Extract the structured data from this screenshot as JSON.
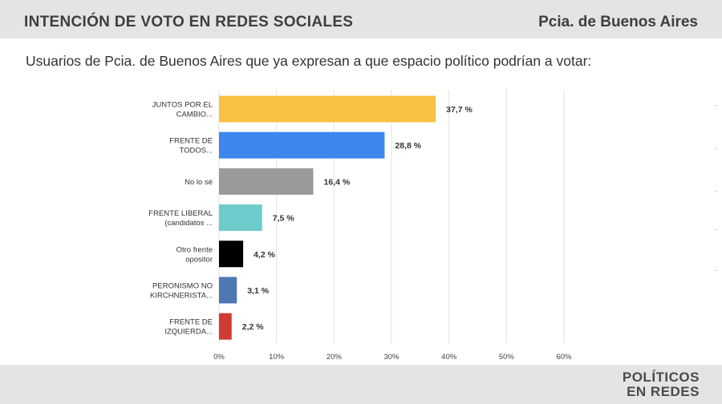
{
  "header": {
    "title": "INTENCIÓN DE VOTO EN REDES SOCIALES",
    "region": "Pcia. de Buenos Aires"
  },
  "subtitle": "Usuarios de Pcia. de Buenos Aires que ya expresan a que espacio político podrían a votar:",
  "logo": {
    "line1": "POLÍTICOS",
    "line2": "EN REDES"
  },
  "chart_data": {
    "type": "bar",
    "orientation": "horizontal",
    "categories": [
      [
        "JUNTOS POR EL",
        "CAMBIO..."
      ],
      [
        "FRENTE DE",
        "TODOS..."
      ],
      [
        "No lo sé"
      ],
      [
        "FRENTE LIBERAL",
        "(candidatos ..."
      ],
      [
        "Otro frente",
        "opositor"
      ],
      [
        "PERONISMO NO",
        "KIRCHNERISTA..."
      ],
      [
        "FRENTE DE",
        "IZQUIERDA..."
      ]
    ],
    "values": [
      37.7,
      28.8,
      16.4,
      7.5,
      4.2,
      3.1,
      2.2
    ],
    "value_labels": [
      "37,7 %",
      "28,8 %",
      "16,4 %",
      "7,5 %",
      "4,2 %",
      "3,1 %",
      "2,2 %"
    ],
    "colors": [
      "#f8c143",
      "#3d87ee",
      "#9a9a9a",
      "#6dcbcc",
      "#000000",
      "#4d78b4",
      "#d03a35"
    ],
    "xlim": [
      0,
      60
    ],
    "ticks": [
      0,
      10,
      20,
      30,
      40,
      50,
      60
    ],
    "tick_labels": [
      "0%",
      "10%",
      "20%",
      "30%",
      "40%",
      "50%",
      "60%"
    ],
    "grid": true
  }
}
